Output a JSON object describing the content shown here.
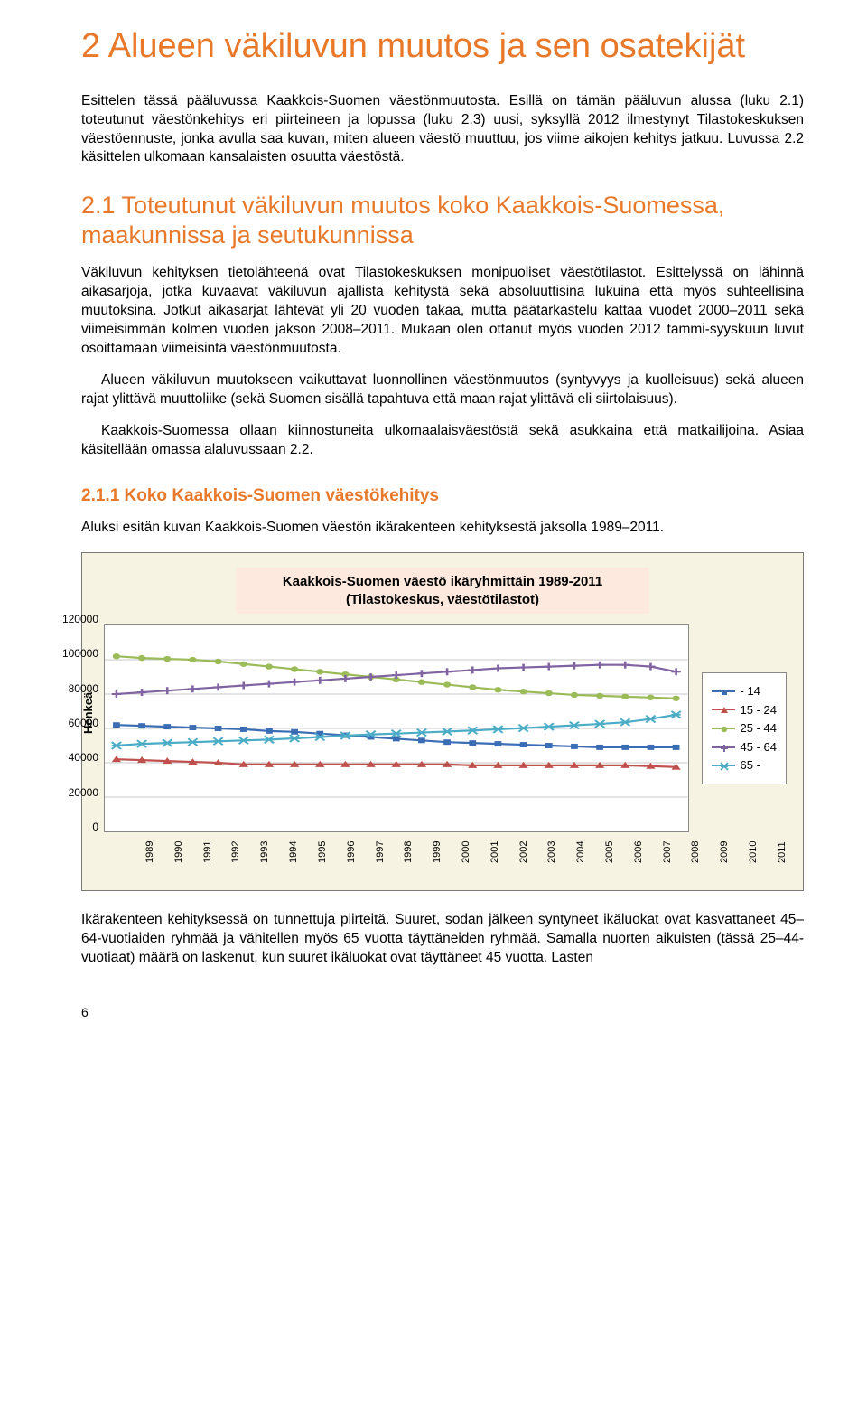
{
  "title": "2 Alueen väkiluvun muutos ja sen osatekijät",
  "intro": "Esittelen tässä pääluvussa Kaakkois-Suomen väestönmuutosta. Esillä on tämän pääluvun alussa (luku 2.1) toteutunut väestönkehitys eri piirteineen ja lopussa (luku 2.3) uusi, syksyllä 2012 ilmestynyt Tilastokeskuksen väestöennuste, jonka avulla saa kuvan, miten alueen väestö muuttuu, jos viime aikojen kehitys jatkuu. Luvussa 2.2 käsittelen ulkomaan kansalaisten osuutta väestöstä.",
  "sec21_title": "2.1 Toteutunut väkiluvun muutos koko Kaakkois-Suomessa, maakunnissa ja seutukunnissa",
  "sec21_p1": "Väkiluvun kehityksen tietolähteenä ovat Tilastokeskuksen monipuoliset väestötilastot. Esittelyssä on lähinnä aikasarjoja, jotka kuvaavat väkiluvun ajallista kehitystä sekä absoluuttisina lukuina että myös suhteellisina muutoksina. Jotkut aikasarjat lähtevät yli 20 vuoden takaa, mutta päätarkastelu kattaa vuodet 2000–2011 sekä viimeisimmän kolmen vuoden jakson 2008–2011. Mukaan olen ottanut myös vuoden 2012 tammi-syyskuun luvut osoittamaan viimeisintä väestönmuutosta.",
  "sec21_p2": "Alueen väkiluvun muutokseen vaikuttavat luonnollinen väestönmuutos (syntyvyys ja kuolleisuus) sekä alueen rajat ylittävä muuttoliike (sekä Suomen sisällä tapahtuva että maan rajat ylittävä eli siirtolaisuus).",
  "sec21_p3": "Kaakkois-Suomessa ollaan kiinnostuneita ulkomaalaisväestöstä sekä asukkaina että matkailijoina. Asiaa käsitellään omassa alaluvussaan 2.2.",
  "sec211_title": "2.1.1 Koko Kaakkois-Suomen väestökehitys",
  "sec211_intro": "Aluksi esitän kuvan Kaakkois-Suomen väestön ikärakenteen kehityksestä jaksolla 1989–2011.",
  "chart": {
    "type": "line",
    "title_line1": "Kaakkois-Suomen väestö ikäryhmittäin 1989-2011",
    "title_line2": "(Tilastokeskus, väestötilastot)",
    "ylabel": "Henkeä",
    "ylim": [
      0,
      120000
    ],
    "ytick_step": 20000,
    "yticks": [
      "0",
      "20000",
      "40000",
      "60000",
      "80000",
      "100000",
      "120000"
    ],
    "x_years": [
      "1989",
      "1990",
      "1991",
      "1992",
      "1993",
      "1994",
      "1995",
      "1996",
      "1997",
      "1998",
      "1999",
      "2000",
      "2001",
      "2002",
      "2003",
      "2004",
      "2005",
      "2006",
      "2007",
      "2008",
      "2009",
      "2010",
      "2011"
    ],
    "background_color": "#ffffff",
    "plot_bg": "#ffffff",
    "frame_bg": "#f6f3e2",
    "title_bg": "#fde9dd",
    "grid_color": "#c9c9c9",
    "series": [
      {
        "label": "- 14",
        "color": "#3b6db5",
        "marker": "square",
        "values": [
          62000,
          61500,
          61000,
          60500,
          60000,
          59500,
          58500,
          58000,
          57000,
          56000,
          55000,
          54000,
          53000,
          52000,
          51500,
          51000,
          50500,
          50000,
          49500,
          49000,
          49000,
          49000,
          49000
        ]
      },
      {
        "label": "15 - 24",
        "color": "#c0504d",
        "marker": "triangle",
        "values": [
          42000,
          41500,
          41000,
          40500,
          40000,
          39000,
          39000,
          39000,
          39000,
          39000,
          39000,
          39000,
          39000,
          39000,
          38500,
          38500,
          38500,
          38500,
          38500,
          38500,
          38500,
          38000,
          37500
        ]
      },
      {
        "label": "25 - 44",
        "color": "#9bbb59",
        "marker": "circle",
        "values": [
          102000,
          101000,
          100500,
          100000,
          99000,
          97500,
          96000,
          94500,
          93000,
          91500,
          90000,
          88500,
          87000,
          85500,
          84000,
          82500,
          81500,
          80500,
          79500,
          79000,
          78500,
          78000,
          77500
        ]
      },
      {
        "label": "45 - 64",
        "color": "#8064a2",
        "marker": "plus",
        "values": [
          80000,
          81000,
          82000,
          83000,
          84000,
          85000,
          86000,
          87000,
          88000,
          89000,
          90000,
          91000,
          92000,
          93000,
          94000,
          95000,
          95500,
          96000,
          96500,
          97000,
          97000,
          96000,
          93000
        ]
      },
      {
        "label": "65 -",
        "color": "#4bacc6",
        "marker": "star",
        "values": [
          50000,
          51000,
          51500,
          52000,
          52500,
          53000,
          53500,
          54200,
          55000,
          55800,
          56500,
          57000,
          57600,
          58200,
          58800,
          59500,
          60200,
          61000,
          61800,
          62600,
          63600,
          65500,
          68000
        ]
      }
    ]
  },
  "closing": "Ikärakenteen kehityksessä on tunnettuja piirteitä. Suuret, sodan jälkeen syntyneet ikäluokat ovat kasvattaneet 45–64-vuotiaiden ryhmää ja vähitellen myös 65 vuotta täyttäneiden ryhmää. Samalla nuorten aikuisten (tässä 25–44-vuotiaat) määrä on laskenut, kun suuret ikäluokat ovat täyttäneet 45 vuotta. Lasten",
  "page_num": "6",
  "colors": {
    "heading": "#e8792a",
    "text": "#000000"
  }
}
